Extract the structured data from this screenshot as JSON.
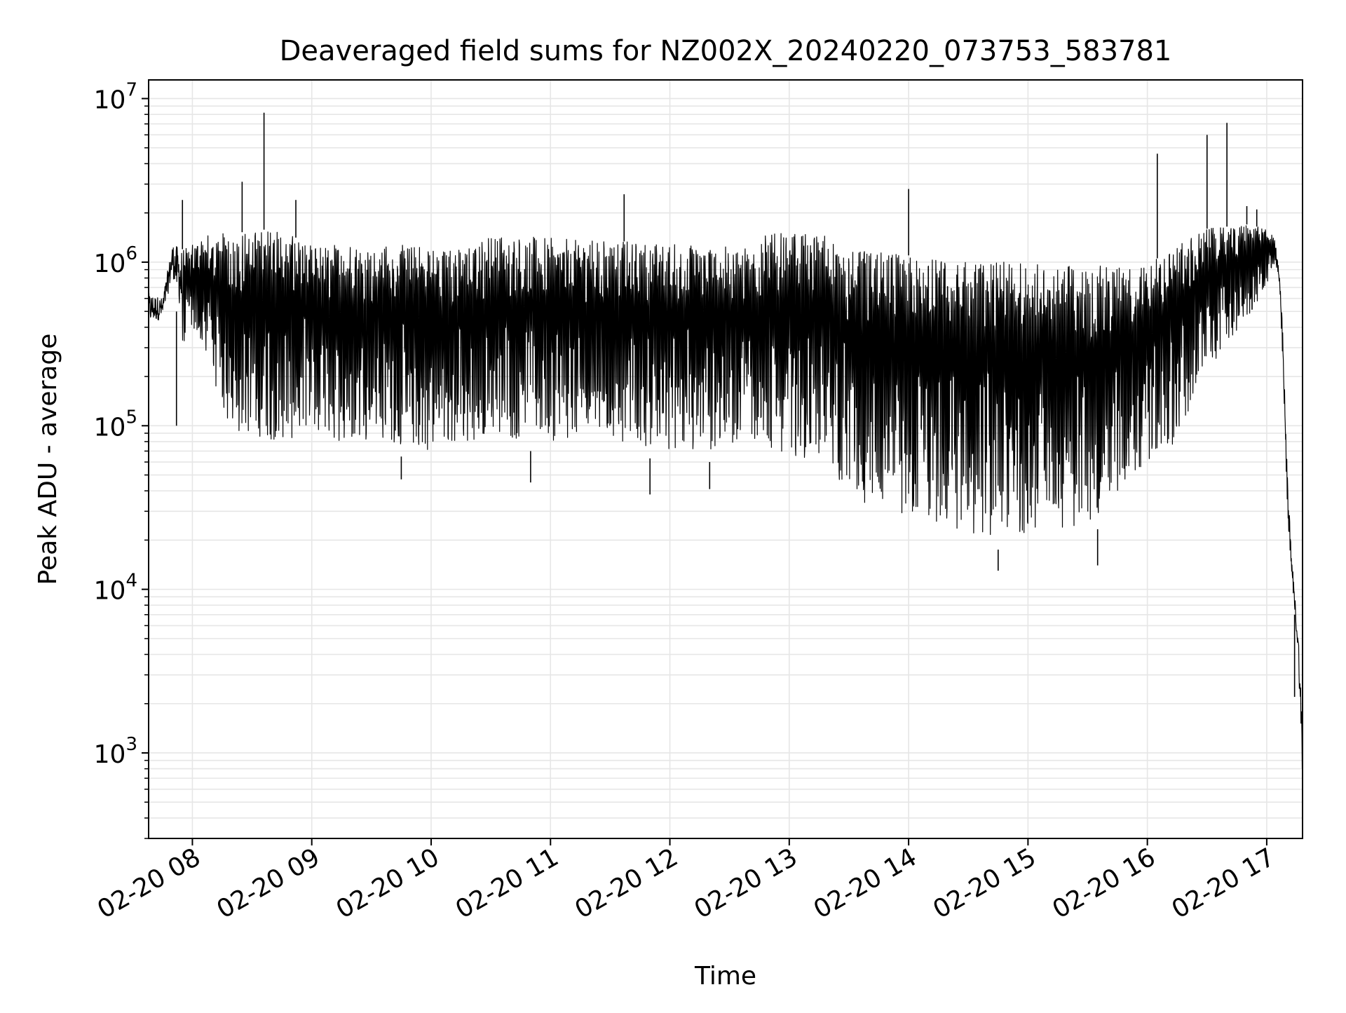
{
  "chart_data": {
    "type": "line",
    "title": "Deaveraged field sums for NZ002X_20240220_073753_583781",
    "xlabel": "Time",
    "ylabel": "Peak ADU - average",
    "yscale": "log",
    "ylim": [
      300,
      13000000
    ],
    "xlim": [
      "2024-02-20 07:38",
      "2024-02-20 17:18"
    ],
    "grid": true,
    "line_color": "#000000",
    "grid_color": "#e6e6e6",
    "x_ticks": [
      {
        "t": "2024-02-20 08:00",
        "label": "02-20 08"
      },
      {
        "t": "2024-02-20 09:00",
        "label": "02-20 09"
      },
      {
        "t": "2024-02-20 10:00",
        "label": "02-20 10"
      },
      {
        "t": "2024-02-20 11:00",
        "label": "02-20 11"
      },
      {
        "t": "2024-02-20 12:00",
        "label": "02-20 12"
      },
      {
        "t": "2024-02-20 13:00",
        "label": "02-20 13"
      },
      {
        "t": "2024-02-20 14:00",
        "label": "02-20 14"
      },
      {
        "t": "2024-02-20 15:00",
        "label": "02-20 15"
      },
      {
        "t": "2024-02-20 16:00",
        "label": "02-20 16"
      },
      {
        "t": "2024-02-20 17:00",
        "label": "02-20 17"
      }
    ],
    "y_ticks": [
      {
        "value": 1000,
        "base": "10",
        "exp": "3"
      },
      {
        "value": 10000,
        "base": "10",
        "exp": "4"
      },
      {
        "value": 100000,
        "base": "10",
        "exp": "5"
      },
      {
        "value": 1000000,
        "base": "10",
        "exp": "6"
      },
      {
        "value": 10000000,
        "base": "10",
        "exp": "7"
      }
    ],
    "envelope": [
      {
        "t": "2024-02-20 07:38",
        "low": 350000,
        "high": 650000
      },
      {
        "t": "2024-02-20 07:45",
        "low": 400000,
        "high": 600000
      },
      {
        "t": "2024-02-20 07:50",
        "low": 700000,
        "high": 1300000
      },
      {
        "t": "2024-02-20 07:55",
        "low": 300000,
        "high": 1200000
      },
      {
        "t": "2024-02-20 08:05",
        "low": 300000,
        "high": 1400000
      },
      {
        "t": "2024-02-20 08:10",
        "low": 150000,
        "high": 1500000
      },
      {
        "t": "2024-02-20 08:20",
        "low": 80000,
        "high": 1500000
      },
      {
        "t": "2024-02-20 08:40",
        "low": 70000,
        "high": 1600000
      },
      {
        "t": "2024-02-20 09:00",
        "low": 70000,
        "high": 1300000
      },
      {
        "t": "2024-02-20 09:30",
        "low": 70000,
        "high": 1300000
      },
      {
        "t": "2024-02-20 10:00",
        "low": 60000,
        "high": 1250000
      },
      {
        "t": "2024-02-20 10:20",
        "low": 60000,
        "high": 1250000
      },
      {
        "t": "2024-02-20 10:30",
        "low": 70000,
        "high": 1500000
      },
      {
        "t": "2024-02-20 11:00",
        "low": 70000,
        "high": 1400000
      },
      {
        "t": "2024-02-20 11:30",
        "low": 70000,
        "high": 1350000
      },
      {
        "t": "2024-02-20 12:00",
        "low": 60000,
        "high": 1300000
      },
      {
        "t": "2024-02-20 12:30",
        "low": 60000,
        "high": 1250000
      },
      {
        "t": "2024-02-20 12:50",
        "low": 60000,
        "high": 1500000
      },
      {
        "t": "2024-02-20 13:20",
        "low": 50000,
        "high": 1500000
      },
      {
        "t": "2024-02-20 13:30",
        "low": 30000,
        "high": 1200000
      },
      {
        "t": "2024-02-20 14:00",
        "low": 22000,
        "high": 1100000
      },
      {
        "t": "2024-02-20 14:30",
        "low": 17000,
        "high": 1000000
      },
      {
        "t": "2024-02-20 15:00",
        "low": 18000,
        "high": 1000000
      },
      {
        "t": "2024-02-20 15:30",
        "low": 20000,
        "high": 950000
      },
      {
        "t": "2024-02-20 16:00",
        "low": 50000,
        "high": 950000
      },
      {
        "t": "2024-02-20 16:15",
        "low": 70000,
        "high": 1300000
      },
      {
        "t": "2024-02-20 16:30",
        "low": 200000,
        "high": 1600000
      },
      {
        "t": "2024-02-20 16:50",
        "low": 400000,
        "high": 1700000
      },
      {
        "t": "2024-02-20 17:00",
        "low": 700000,
        "high": 1600000
      },
      {
        "t": "2024-02-20 17:04",
        "low": 900000,
        "high": 1400000
      },
      {
        "t": "2024-02-20 17:06",
        "low": 700000,
        "high": 1000000
      },
      {
        "t": "2024-02-20 17:08",
        "low": 200000,
        "high": 400000
      },
      {
        "t": "2024-02-20 17:10",
        "low": 30000,
        "high": 70000
      },
      {
        "t": "2024-02-20 17:12",
        "low": 12000,
        "high": 20000
      },
      {
        "t": "2024-02-20 17:14",
        "low": 7000,
        "high": 9500
      },
      {
        "t": "2024-02-20 17:16",
        "low": 3000,
        "high": 5000
      },
      {
        "t": "2024-02-20 17:18",
        "low": 400,
        "high": 1500
      }
    ],
    "spikes": [
      {
        "t": "2024-02-20 07:52",
        "value": 100000
      },
      {
        "t": "2024-02-20 07:55",
        "value": 2400000
      },
      {
        "t": "2024-02-20 08:25",
        "value": 3100000
      },
      {
        "t": "2024-02-20 08:36",
        "value": 8200000
      },
      {
        "t": "2024-02-20 08:52",
        "value": 2400000
      },
      {
        "t": "2024-02-20 11:37",
        "value": 2600000
      },
      {
        "t": "2024-02-20 13:60",
        "value": 2800000
      },
      {
        "t": "2024-02-20 16:05",
        "value": 4600000
      },
      {
        "t": "2024-02-20 16:30",
        "value": 6000000
      },
      {
        "t": "2024-02-20 16:40",
        "value": 7100000
      },
      {
        "t": "2024-02-20 16:50",
        "value": 2200000
      },
      {
        "t": "2024-02-20 16:55",
        "value": 2100000
      },
      {
        "t": "2024-02-20 14:45",
        "value": 13000
      },
      {
        "t": "2024-02-20 15:35",
        "value": 14000
      },
      {
        "t": "2024-02-20 11:50",
        "value": 38000
      },
      {
        "t": "2024-02-20 09:45",
        "value": 47000
      },
      {
        "t": "2024-02-20 10:50",
        "value": 45000
      },
      {
        "t": "2024-02-20 12:20",
        "value": 41000
      },
      {
        "t": "2024-02-20 17:14",
        "value": 2200
      }
    ]
  }
}
